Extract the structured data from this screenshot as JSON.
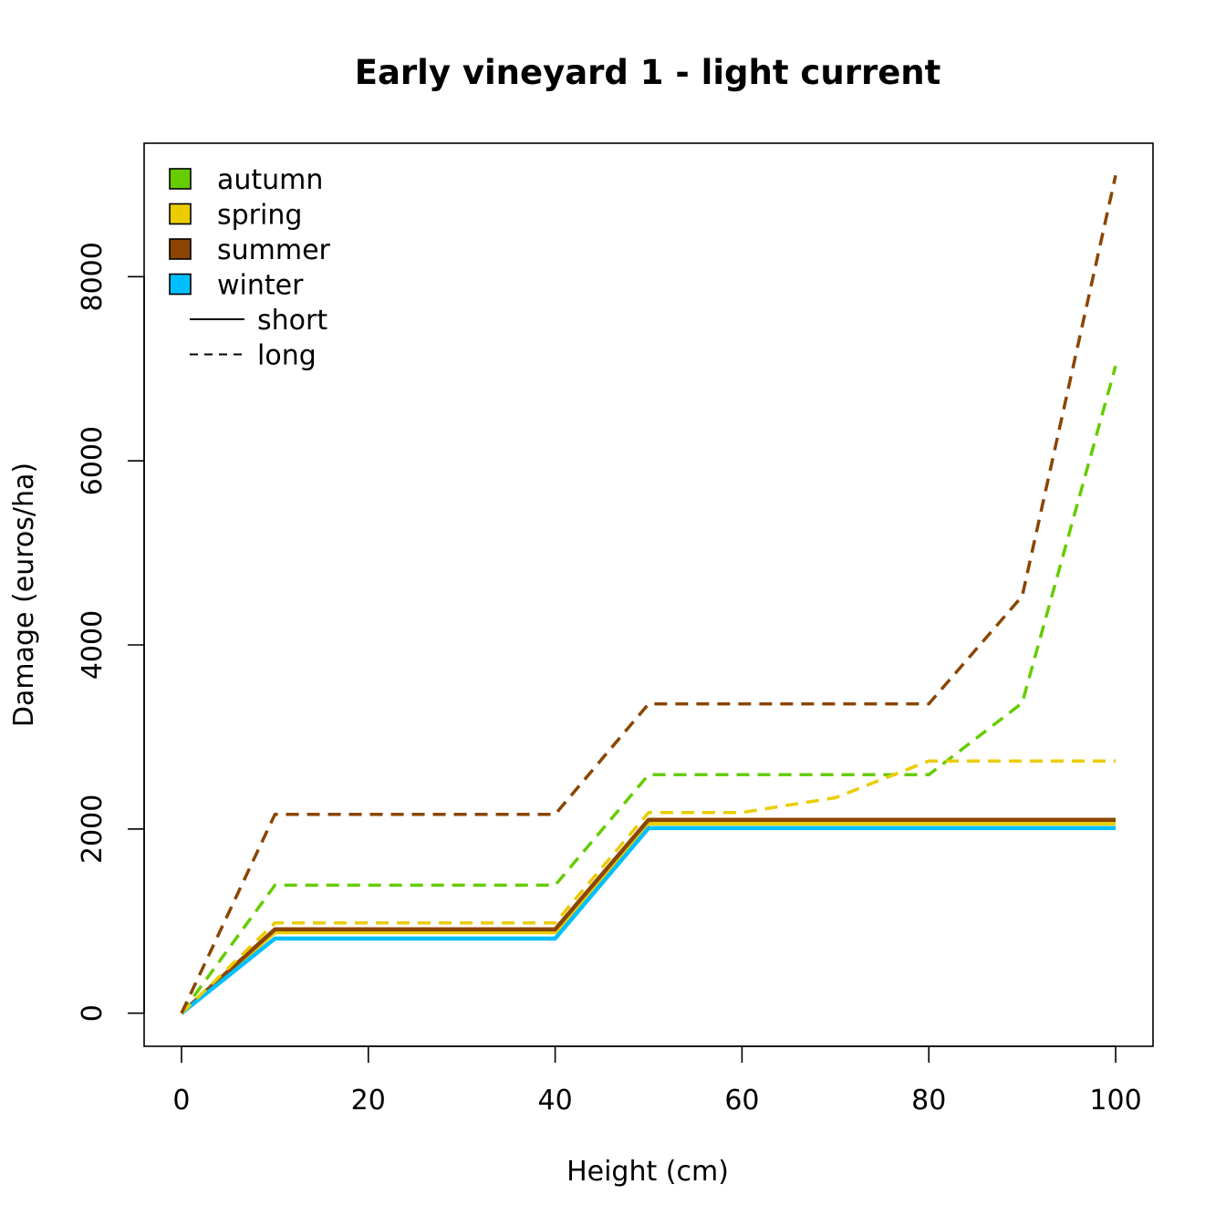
{
  "chart_data": {
    "type": "line",
    "title": "Early vineyard 1 - light current",
    "xlabel": "Height (cm)",
    "ylabel": "Damage (euros/ha)",
    "xlim": [
      -4,
      104
    ],
    "ylim": [
      -360,
      9450
    ],
    "x_ticks": [
      0,
      20,
      40,
      60,
      80,
      100
    ],
    "y_ticks": [
      0,
      2000,
      4000,
      6000,
      8000
    ],
    "grid": false,
    "legend_position": "top-left",
    "seasons": [
      {
        "name": "autumn",
        "color": "#66CC00"
      },
      {
        "name": "spring",
        "color": "#EBCC00"
      },
      {
        "name": "summer",
        "color": "#8B4500"
      },
      {
        "name": "winter",
        "color": "#00BFFF"
      }
    ],
    "line_types": [
      {
        "name": "short",
        "dash": "solid"
      },
      {
        "name": "long",
        "dash": "dashed"
      }
    ],
    "x": [
      0,
      10,
      40,
      50,
      60,
      70,
      80,
      90,
      100
    ],
    "series": [
      {
        "season": "autumn",
        "duration": "short",
        "color": "#66CC00",
        "dash": "solid",
        "values": [
          0,
          900,
          900,
          2080,
          2080,
          2080,
          2080,
          2080,
          2080
        ]
      },
      {
        "season": "spring",
        "duration": "short",
        "color": "#EBCC00",
        "dash": "solid",
        "values": [
          0,
          880,
          880,
          2060,
          2060,
          2060,
          2060,
          2060,
          2060
        ]
      },
      {
        "season": "summer",
        "duration": "short",
        "color": "#8B4500",
        "dash": "solid",
        "values": [
          0,
          910,
          910,
          2100,
          2100,
          2100,
          2100,
          2100,
          2100
        ]
      },
      {
        "season": "winter",
        "duration": "short",
        "color": "#00BFFF",
        "dash": "solid",
        "values": [
          0,
          810,
          810,
          2010,
          2010,
          2010,
          2010,
          2010,
          2010
        ]
      },
      {
        "season": "autumn",
        "duration": "long",
        "color": "#66CC00",
        "dash": "dashed",
        "values": [
          0,
          1390,
          1390,
          2590,
          2590,
          2590,
          2590,
          3370,
          7030
        ]
      },
      {
        "season": "spring",
        "duration": "long",
        "color": "#EBCC00",
        "dash": "dashed",
        "values": [
          0,
          980,
          980,
          2180,
          2180,
          2340,
          2740,
          2740,
          2740
        ]
      },
      {
        "season": "summer",
        "duration": "long",
        "color": "#8B4500",
        "dash": "dashed",
        "values": [
          0,
          2160,
          2160,
          3360,
          3360,
          3360,
          3360,
          4530,
          9100
        ]
      }
    ]
  }
}
